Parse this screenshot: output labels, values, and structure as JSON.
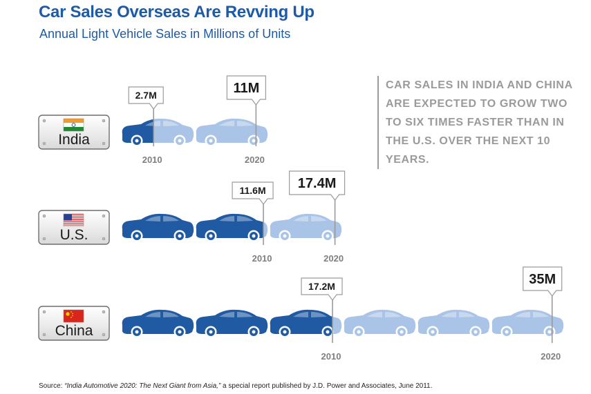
{
  "title": "Car Sales Overseas Are Revving Up",
  "subtitle": "Annual Light Vehicle Sales in Millions of Units",
  "note": "CAR SALES IN INDIA AND CHINA ARE EXPECTED TO GROW TWO TO SIX TIMES FASTER THAN IN THE U.S. OVER THE NEXT 10 YEARS.",
  "source": {
    "prefix": "Source: ",
    "italic": "“India Automotive 2020: The Next Giant from Asia,”",
    "suffix": " a special report published by J.D. Power and Associates, June 2011."
  },
  "colors": {
    "title": "#1e5aa6",
    "car2010": "#1f5aa3",
    "car2020": "#a9c4e6",
    "note": "#9a9a9a"
  },
  "chart_data": {
    "type": "bar",
    "units": "Millions of Units",
    "categories": [
      "India",
      "U.S.",
      "China"
    ],
    "years": [
      "2010",
      "2020"
    ],
    "series": [
      {
        "name": "2010",
        "values": [
          2.7,
          11.6,
          17.2
        ],
        "labels": [
          "2.7M",
          "11.6M",
          "17.2M"
        ]
      },
      {
        "name": "2020",
        "values": [
          11,
          17.4,
          35
        ],
        "labels": [
          "11M",
          "17.4M",
          "35M"
        ]
      }
    ],
    "icon": "car-icon",
    "flags": [
      "india-flag-icon",
      "us-flag-icon",
      "china-flag-icon"
    ]
  }
}
